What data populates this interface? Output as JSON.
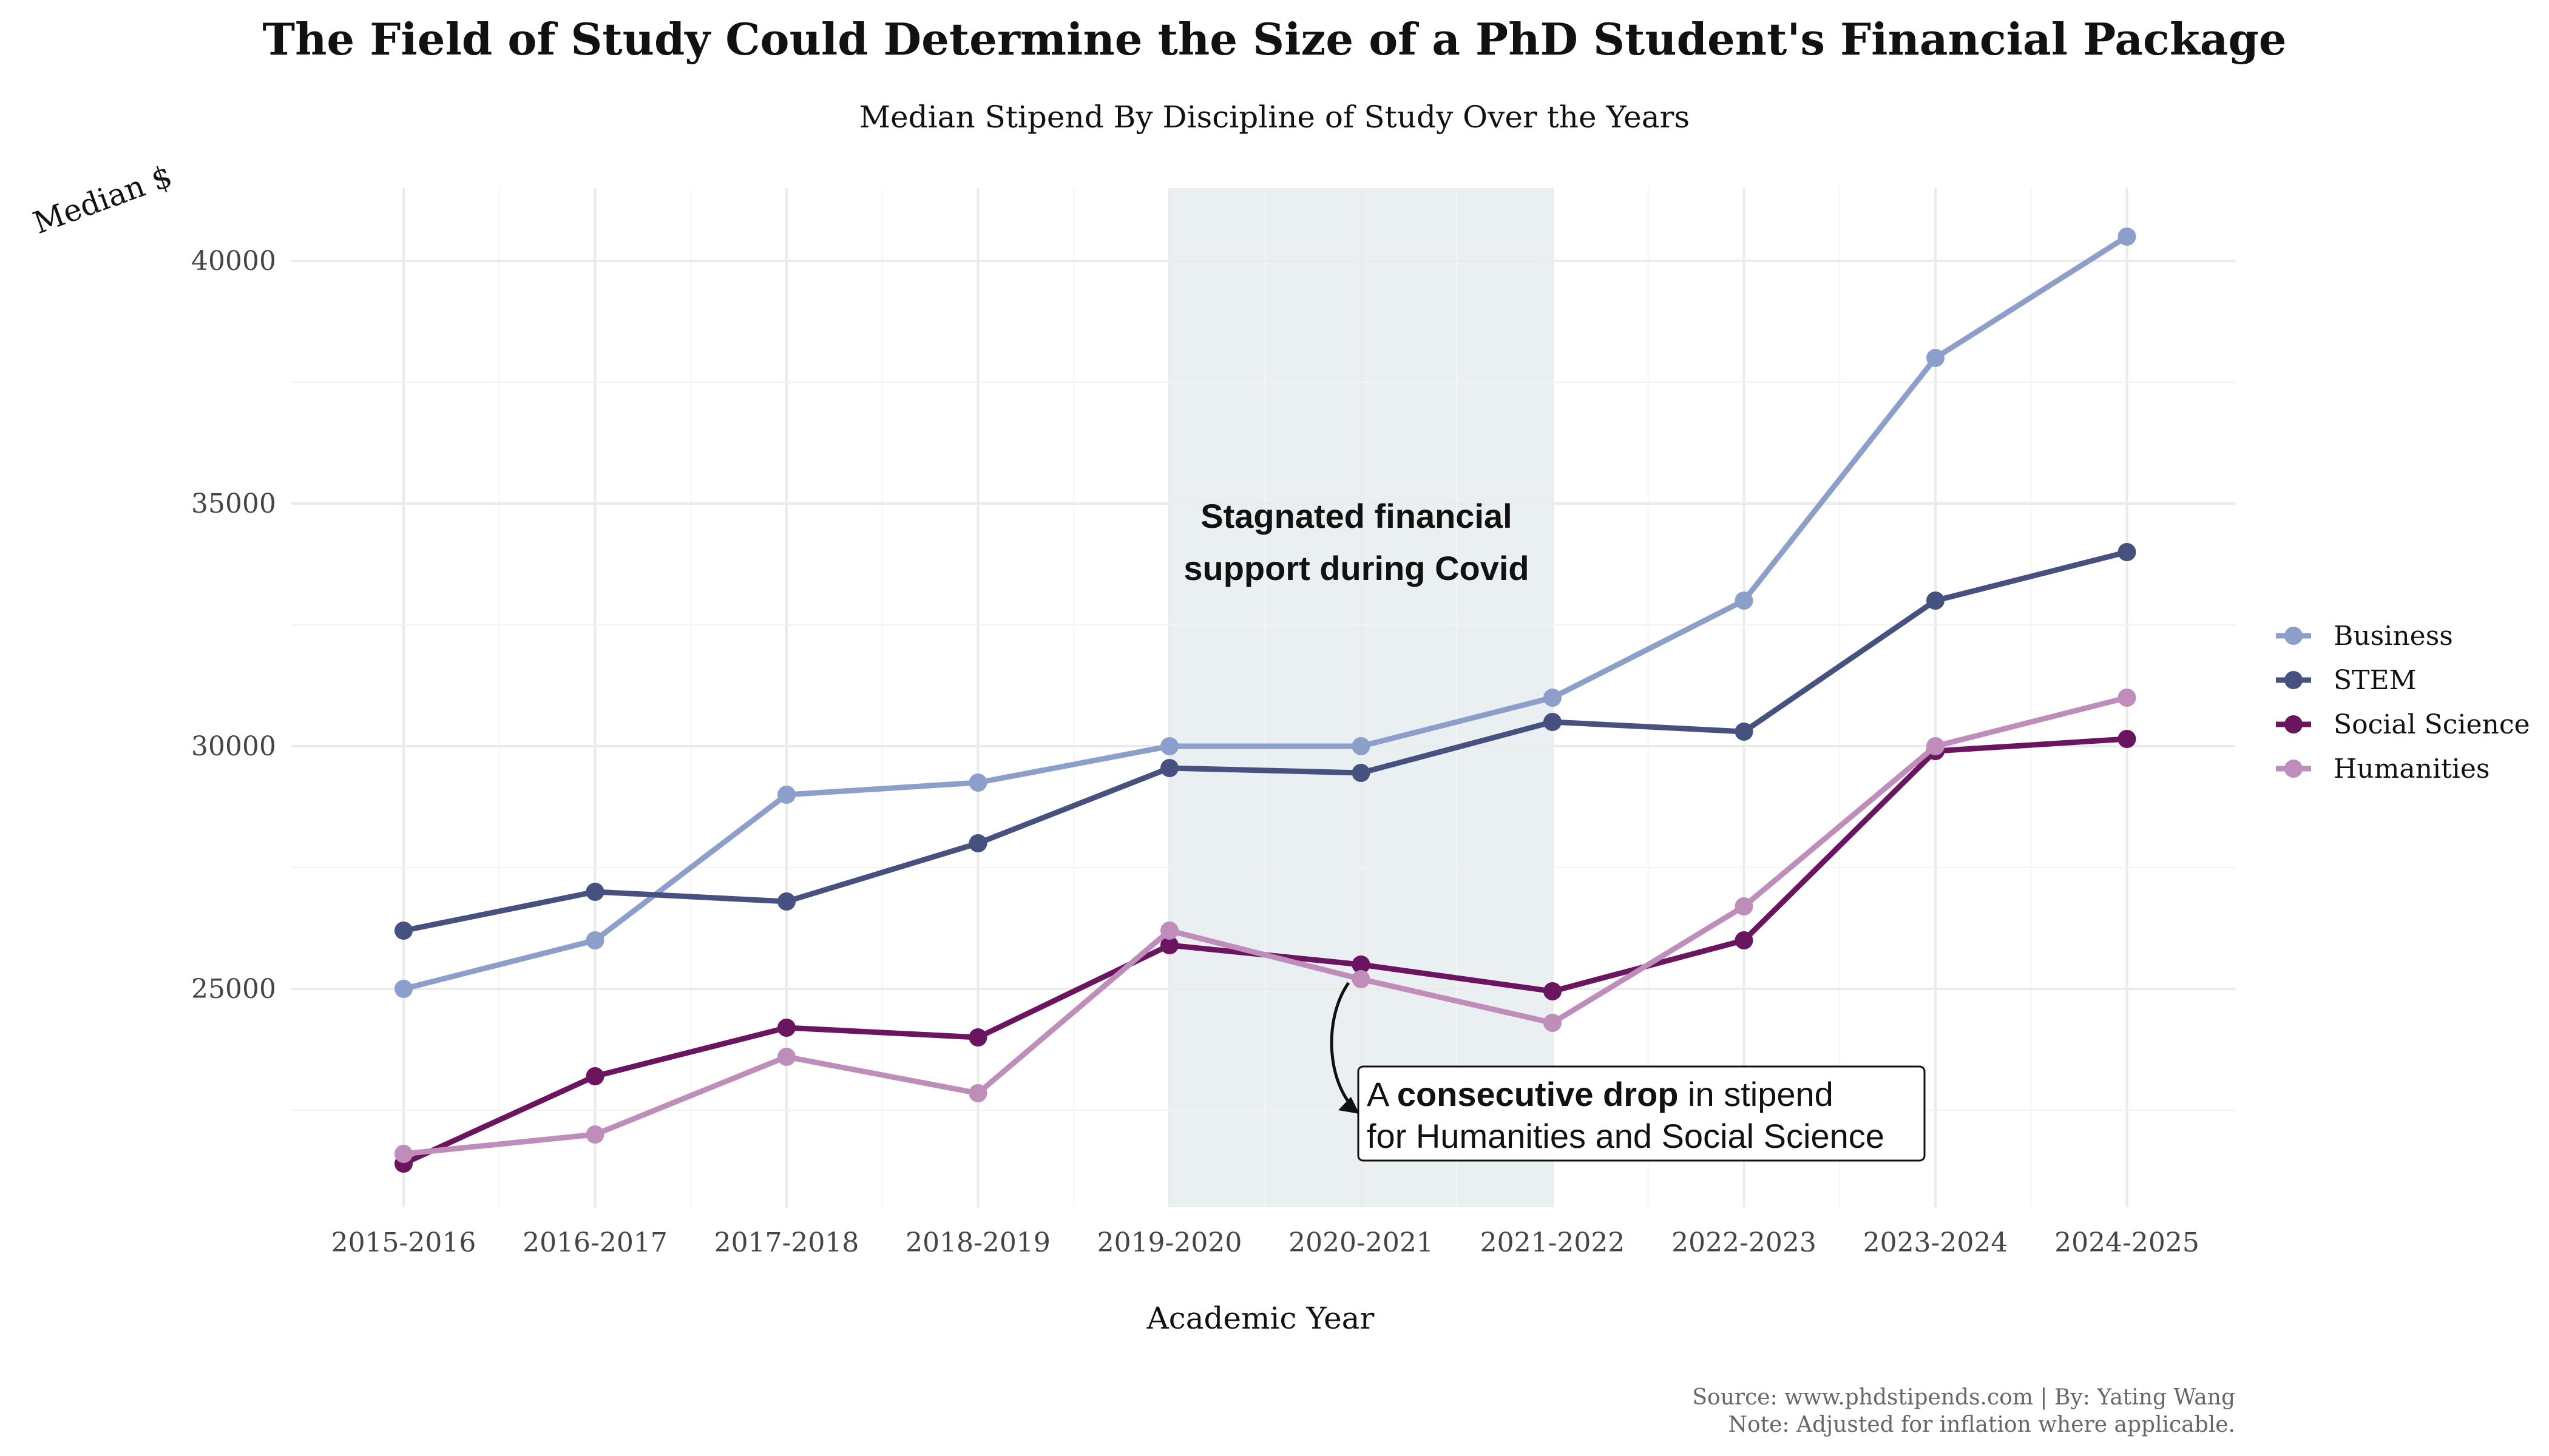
{
  "chart_data": {
    "type": "line",
    "title": "The Field of Study Could Determine the Size of a PhD Student's Financial Package",
    "subtitle": "Median Stipend By Discipline of Study Over the Years",
    "xlabel": "Academic Year",
    "ylabel": "Median $",
    "categories": [
      "2015-2016",
      "2016-2017",
      "2017-2018",
      "2018-2019",
      "2019-2020",
      "2020-2021",
      "2021-2022",
      "2022-2023",
      "2023-2024",
      "2024-2025"
    ],
    "yticks": [
      25000,
      30000,
      35000,
      40000
    ],
    "ylim": [
      20500,
      41500
    ],
    "grid": true,
    "legend_position": "right",
    "series": [
      {
        "name": "Business",
        "color": "#8C9FCB",
        "values": [
          25000,
          26000,
          29000,
          29250,
          30000,
          30000,
          31000,
          33000,
          38000,
          40500
        ]
      },
      {
        "name": "STEM",
        "color": "#465180",
        "values": [
          26200,
          27000,
          26800,
          28000,
          29550,
          29450,
          30500,
          30300,
          33000,
          34000
        ]
      },
      {
        "name": "Social Science",
        "color": "#6B1460",
        "values": [
          21400,
          23200,
          24200,
          24000,
          25900,
          25500,
          24950,
          26000,
          29900,
          30150
        ]
      },
      {
        "name": "Humanities",
        "color": "#BE8DBA",
        "values": [
          21600,
          22000,
          23600,
          22850,
          26200,
          25200,
          24300,
          26700,
          30000,
          31000
        ]
      }
    ],
    "highlight_band": {
      "from": "2019-2020",
      "to": "2021-2022",
      "color": "#EAF0F2"
    },
    "annotations": {
      "covid_line1": "Stagnated financial",
      "covid_line2": "support during Covid",
      "drop_prefix": "A ",
      "drop_bold": "consecutive drop",
      "drop_suffix": " in stipend",
      "drop_line2": "for Humanities and Social Science"
    }
  },
  "caption": {
    "line1": "Source: www.phdstipends.com | By: Yating Wang",
    "line2": "Note: Adjusted for inflation where applicable."
  }
}
